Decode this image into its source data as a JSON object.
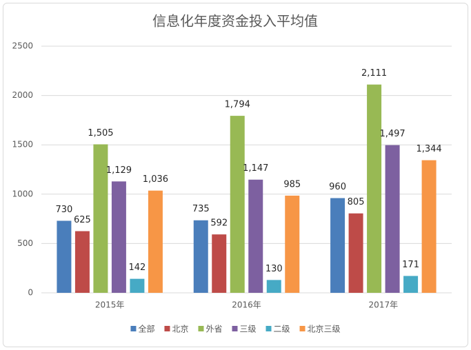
{
  "chart_data": {
    "type": "bar",
    "title": "信息化年度资金投入平均值",
    "categories": [
      "2015年",
      "2016年",
      "2017年"
    ],
    "series": [
      {
        "name": "全部",
        "color": "#4a7ebb",
        "values": [
          730,
          735,
          960
        ],
        "value_labels": [
          "730",
          "735",
          "960"
        ]
      },
      {
        "name": "北京",
        "color": "#be4b48",
        "values": [
          625,
          592,
          805
        ],
        "value_labels": [
          "625",
          "592",
          "805"
        ]
      },
      {
        "name": "外省",
        "color": "#98b954",
        "values": [
          1505,
          1794,
          2111
        ],
        "value_labels": [
          "1,505",
          "1,794",
          "2,111"
        ]
      },
      {
        "name": "三级",
        "color": "#7d60a0",
        "values": [
          1129,
          1147,
          1497
        ],
        "value_labels": [
          "1,129",
          "1,147",
          "1,497"
        ]
      },
      {
        "name": "二级",
        "color": "#46aac5",
        "values": [
          142,
          130,
          171
        ],
        "value_labels": [
          "142",
          "130",
          "171"
        ]
      },
      {
        "name": "北京三级",
        "color": "#f79646",
        "values": [
          1036,
          985,
          1344
        ],
        "value_labels": [
          "1,036",
          "985",
          "1,344"
        ]
      }
    ],
    "ylim": [
      0,
      2500
    ],
    "yticks": [
      0,
      500,
      1000,
      1500,
      2000,
      2500
    ],
    "grid": true,
    "legend": "bottom"
  }
}
